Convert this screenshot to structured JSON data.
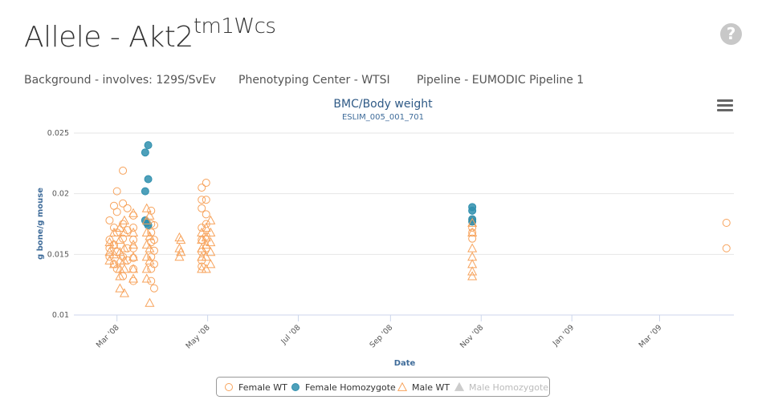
{
  "header": {
    "title_prefix": "Allele - Akt2",
    "title_sup": "tm1Wcs",
    "help_label": "?",
    "background": "Background - involves: 129S/SvEv",
    "center": "Phenotyping Center - WTSI",
    "pipeline": "Pipeline - EUMODIC Pipeline 1"
  },
  "chart_data": {
    "type": "scatter",
    "title": "BMC/Body weight",
    "subtitle": "ESLIM_005_001_701",
    "xlabel": "Date",
    "ylabel": "g bone/g mouse",
    "ylim": [
      0.01,
      0.025
    ],
    "yticks": [
      0.01,
      0.015,
      0.02,
      0.025
    ],
    "ytick_labels": [
      "0.01",
      "0.015",
      "0.02",
      "0.025"
    ],
    "xlim": [
      "2008-02-01",
      "2009-04-20"
    ],
    "xticks": [
      "2008-03-01",
      "2008-05-01",
      "2008-07-01",
      "2008-09-01",
      "2008-11-01",
      "2009-01-01",
      "2009-03-01"
    ],
    "xtick_labels": [
      "Mar '08",
      "May '08",
      "Jul '08",
      "Sep '08",
      "Nov '08",
      "Jan '09",
      "Mar '09"
    ],
    "grid": true,
    "legend_position": "bottom-center",
    "colors": {
      "wt": "#f7a35c",
      "hom": "#2f8fae"
    },
    "series": [
      {
        "name": "Female WT",
        "marker": "circle",
        "filled": false,
        "points": [
          [
            "2008-02-25",
            0.0178
          ],
          [
            "2008-02-25",
            0.0162
          ],
          [
            "2008-02-25",
            0.0155
          ],
          [
            "2008-02-25",
            0.0148
          ],
          [
            "2008-02-28",
            0.019
          ],
          [
            "2008-02-28",
            0.0172
          ],
          [
            "2008-02-28",
            0.0158
          ],
          [
            "2008-02-28",
            0.0142
          ],
          [
            "2008-03-01",
            0.0202
          ],
          [
            "2008-03-01",
            0.0185
          ],
          [
            "2008-03-01",
            0.0168
          ],
          [
            "2008-03-01",
            0.0152
          ],
          [
            "2008-03-01",
            0.0138
          ],
          [
            "2008-03-05",
            0.0219
          ],
          [
            "2008-03-05",
            0.0192
          ],
          [
            "2008-03-05",
            0.0175
          ],
          [
            "2008-03-05",
            0.0163
          ],
          [
            "2008-03-05",
            0.0148
          ],
          [
            "2008-03-05",
            0.0132
          ],
          [
            "2008-03-08",
            0.0188
          ],
          [
            "2008-03-08",
            0.017
          ],
          [
            "2008-03-08",
            0.0155
          ],
          [
            "2008-03-08",
            0.0145
          ],
          [
            "2008-03-12",
            0.0182
          ],
          [
            "2008-03-12",
            0.0172
          ],
          [
            "2008-03-12",
            0.0162
          ],
          [
            "2008-03-12",
            0.0155
          ],
          [
            "2008-03-12",
            0.0147
          ],
          [
            "2008-03-12",
            0.0138
          ],
          [
            "2008-03-12",
            0.0128
          ],
          [
            "2008-03-24",
            0.0186
          ],
          [
            "2008-03-24",
            0.0175
          ],
          [
            "2008-03-24",
            0.0168
          ],
          [
            "2008-03-24",
            0.016
          ],
          [
            "2008-03-24",
            0.0148
          ],
          [
            "2008-03-24",
            0.0138
          ],
          [
            "2008-03-24",
            0.0128
          ],
          [
            "2008-03-26",
            0.0174
          ],
          [
            "2008-03-26",
            0.0162
          ],
          [
            "2008-03-26",
            0.0153
          ],
          [
            "2008-03-26",
            0.0142
          ],
          [
            "2008-03-26",
            0.0122
          ],
          [
            "2008-04-27",
            0.0205
          ],
          [
            "2008-04-27",
            0.0195
          ],
          [
            "2008-04-27",
            0.0188
          ],
          [
            "2008-04-27",
            0.0172
          ],
          [
            "2008-04-27",
            0.0162
          ],
          [
            "2008-04-27",
            0.0152
          ],
          [
            "2008-04-27",
            0.0145
          ],
          [
            "2008-04-27",
            0.014
          ],
          [
            "2008-04-30",
            0.0209
          ],
          [
            "2008-04-30",
            0.0195
          ],
          [
            "2008-04-30",
            0.0183
          ],
          [
            "2008-04-30",
            0.0175
          ],
          [
            "2008-04-30",
            0.0165
          ],
          [
            "2008-04-30",
            0.0155
          ],
          [
            "2008-10-26",
            0.0178
          ],
          [
            "2008-10-26",
            0.0172
          ],
          [
            "2008-10-26",
            0.0168
          ],
          [
            "2008-10-26",
            0.0163
          ],
          [
            "2009-04-15",
            0.0176
          ],
          [
            "2009-04-15",
            0.0155
          ]
        ]
      },
      {
        "name": "Female Homozygote",
        "marker": "circle",
        "filled": true,
        "points": [
          [
            "2008-03-20",
            0.0234
          ],
          [
            "2008-03-22",
            0.024
          ],
          [
            "2008-03-22",
            0.0212
          ],
          [
            "2008-03-20",
            0.0202
          ],
          [
            "2008-03-20",
            0.0178
          ],
          [
            "2008-03-21",
            0.0176
          ],
          [
            "2008-03-22",
            0.0174
          ],
          [
            "2008-10-26",
            0.0189
          ],
          [
            "2008-10-26",
            0.0186
          ],
          [
            "2008-10-26",
            0.0179
          ],
          [
            "2008-10-26",
            0.0177
          ]
        ]
      },
      {
        "name": "Male WT",
        "marker": "triangle",
        "filled": false,
        "points": [
          [
            "2008-02-25",
            0.016
          ],
          [
            "2008-02-25",
            0.0152
          ],
          [
            "2008-02-25",
            0.0145
          ],
          [
            "2008-02-28",
            0.0168
          ],
          [
            "2008-02-28",
            0.0158
          ],
          [
            "2008-02-28",
            0.015
          ],
          [
            "2008-02-28",
            0.0142
          ],
          [
            "2008-03-03",
            0.0172
          ],
          [
            "2008-03-03",
            0.0162
          ],
          [
            "2008-03-03",
            0.0152
          ],
          [
            "2008-03-03",
            0.0145
          ],
          [
            "2008-03-03",
            0.0138
          ],
          [
            "2008-03-03",
            0.0132
          ],
          [
            "2008-03-03",
            0.0122
          ],
          [
            "2008-03-06",
            0.0178
          ],
          [
            "2008-03-06",
            0.0168
          ],
          [
            "2008-03-06",
            0.0155
          ],
          [
            "2008-03-06",
            0.0145
          ],
          [
            "2008-03-06",
            0.0138
          ],
          [
            "2008-03-06",
            0.0118
          ],
          [
            "2008-03-12",
            0.0184
          ],
          [
            "2008-03-12",
            0.0168
          ],
          [
            "2008-03-12",
            0.0158
          ],
          [
            "2008-03-12",
            0.0148
          ],
          [
            "2008-03-12",
            0.0138
          ],
          [
            "2008-03-12",
            0.013
          ],
          [
            "2008-03-21",
            0.0188
          ],
          [
            "2008-03-21",
            0.0178
          ],
          [
            "2008-03-21",
            0.0168
          ],
          [
            "2008-03-21",
            0.0158
          ],
          [
            "2008-03-21",
            0.0148
          ],
          [
            "2008-03-21",
            0.0138
          ],
          [
            "2008-03-21",
            0.013
          ],
          [
            "2008-03-23",
            0.0182
          ],
          [
            "2008-03-23",
            0.0165
          ],
          [
            "2008-03-23",
            0.0155
          ],
          [
            "2008-03-23",
            0.0145
          ],
          [
            "2008-03-23",
            0.011
          ],
          [
            "2008-04-12",
            0.0164
          ],
          [
            "2008-04-12",
            0.0155
          ],
          [
            "2008-04-12",
            0.0148
          ],
          [
            "2008-04-13",
            0.0162
          ],
          [
            "2008-04-13",
            0.0152
          ],
          [
            "2008-04-27",
            0.0168
          ],
          [
            "2008-04-27",
            0.0162
          ],
          [
            "2008-04-27",
            0.0155
          ],
          [
            "2008-04-27",
            0.0148
          ],
          [
            "2008-04-27",
            0.0138
          ],
          [
            "2008-04-30",
            0.0172
          ],
          [
            "2008-04-30",
            0.0164
          ],
          [
            "2008-04-30",
            0.0158
          ],
          [
            "2008-04-30",
            0.0148
          ],
          [
            "2008-04-30",
            0.0138
          ],
          [
            "2008-05-03",
            0.0178
          ],
          [
            "2008-05-03",
            0.0168
          ],
          [
            "2008-05-03",
            0.016
          ],
          [
            "2008-05-03",
            0.0152
          ],
          [
            "2008-05-03",
            0.0142
          ],
          [
            "2008-10-26",
            0.0176
          ],
          [
            "2008-10-26",
            0.0168
          ],
          [
            "2008-10-26",
            0.0155
          ],
          [
            "2008-10-26",
            0.0148
          ],
          [
            "2008-10-26",
            0.0142
          ],
          [
            "2008-10-26",
            0.0136
          ],
          [
            "2008-10-26",
            0.0132
          ]
        ]
      },
      {
        "name": "Male Homozygote",
        "marker": "triangle",
        "filled": true,
        "visible": false,
        "points": []
      }
    ]
  }
}
